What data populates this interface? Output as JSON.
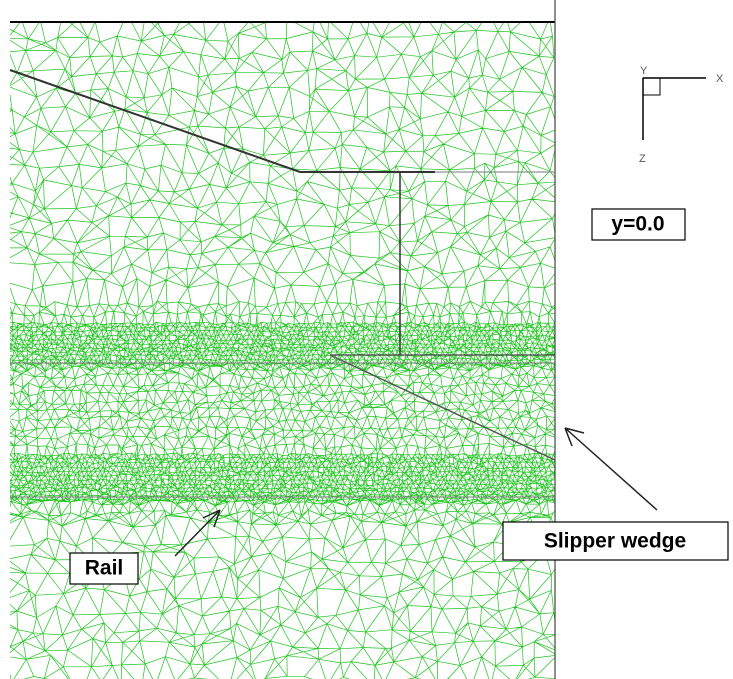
{
  "axes": {
    "y": "Y",
    "x": "X",
    "z": "Z"
  },
  "labels": {
    "plane": "y=0.0",
    "slipper_wedge": "Slipper wedge",
    "rail": "Rail"
  }
}
